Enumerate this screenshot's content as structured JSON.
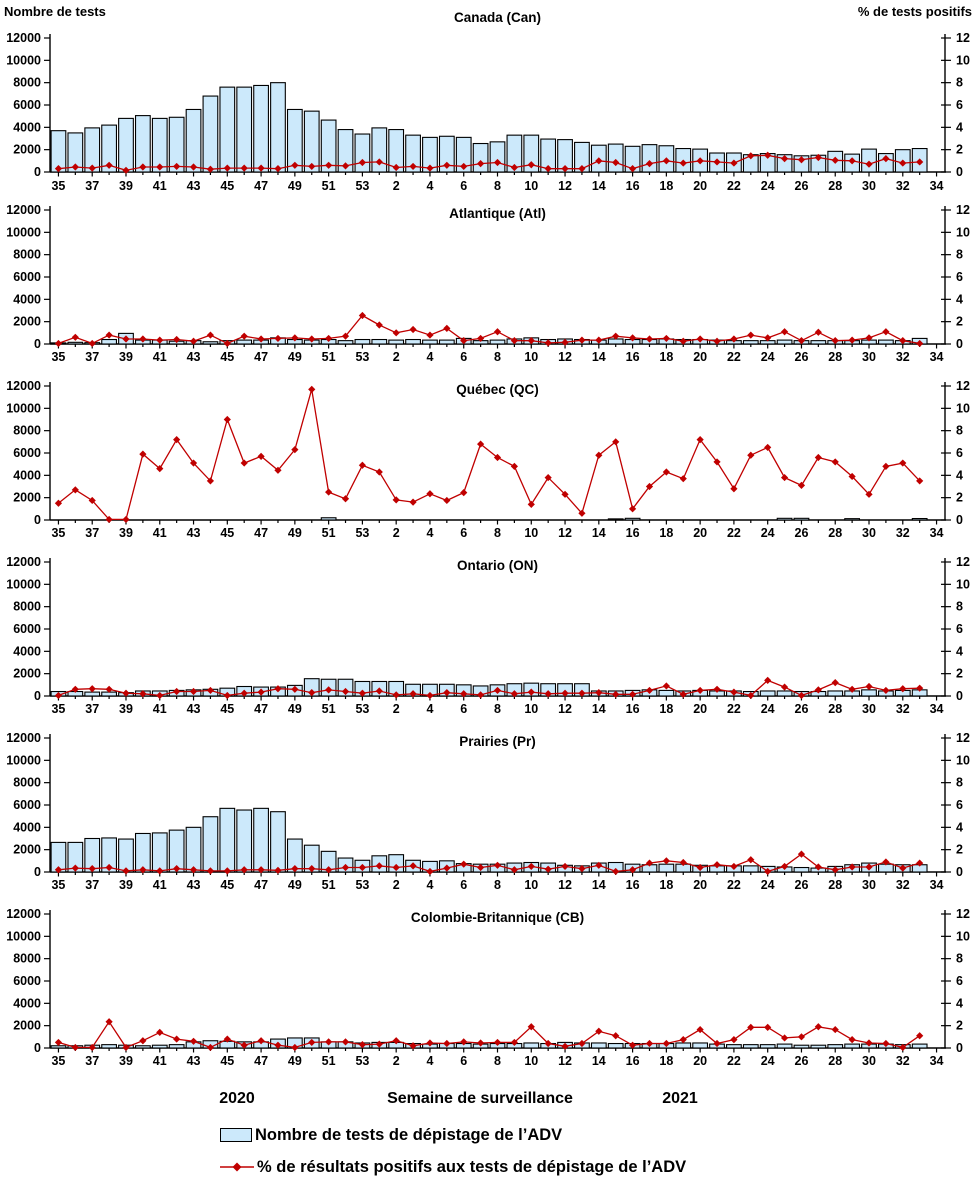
{
  "header": {
    "left_axis_title": "Nombre de tests",
    "right_axis_title": "% de tests positifs"
  },
  "footer": {
    "year_left": "2020",
    "xlabel": "Semaine de surveillance",
    "year_right": "2021"
  },
  "legend": {
    "items": [
      {
        "swatch": "bar",
        "label": "Nombre de tests de dépistage de l’ADV"
      },
      {
        "swatch": "line",
        "label": "% de résultats positifs aux tests de dépistage de l’ADV"
      }
    ]
  },
  "colors": {
    "bar_fill": "#CCE9FB",
    "bar_stroke": "#000000",
    "line": "#C00000",
    "axis": "#000000"
  },
  "chart_data": {
    "type": "bar+line multi-panel",
    "grid": false,
    "legend_position": "bottom",
    "categories": [
      "35",
      "36",
      "37",
      "38",
      "39",
      "40",
      "41",
      "42",
      "43",
      "44",
      "45",
      "46",
      "47",
      "48",
      "49",
      "50",
      "51",
      "52",
      "53",
      "1",
      "2",
      "3",
      "4",
      "5",
      "6",
      "7",
      "8",
      "9",
      "10",
      "11",
      "12",
      "13",
      "14",
      "15",
      "16",
      "17",
      "18",
      "19",
      "20",
      "21",
      "22",
      "23",
      "24",
      "25",
      "26",
      "27",
      "28",
      "29",
      "30",
      "31",
      "32",
      "33"
    ],
    "x_tick_labels": [
      "35",
      "37",
      "39",
      "41",
      "43",
      "45",
      "47",
      "49",
      "51",
      "53",
      "2",
      "4",
      "6",
      "8",
      "10",
      "12",
      "14",
      "16",
      "18",
      "20",
      "22",
      "24",
      "26",
      "28",
      "30",
      "32",
      "34"
    ],
    "left_axis": {
      "title": "Nombre de tests",
      "range": [
        0,
        12000
      ],
      "ticks": [
        0,
        2000,
        4000,
        6000,
        8000,
        10000,
        12000
      ]
    },
    "right_axis": {
      "title": "% de tests positifs",
      "range": [
        0,
        12
      ],
      "ticks": [
        0,
        2,
        4,
        6,
        8,
        10,
        12
      ]
    },
    "panels": [
      {
        "key": "can",
        "title": "Canada (Can)",
        "series": [
          {
            "name": "Nombre de tests de dépistage de l’ADV",
            "type": "bar",
            "axis": "left",
            "values": [
              3700,
              3500,
              3950,
              4200,
              4800,
              5050,
              4800,
              4900,
              5600,
              6800,
              7600,
              7600,
              7750,
              8000,
              5600,
              5450,
              4650,
              3800,
              3400,
              3950,
              3800,
              3300,
              3100,
              3200,
              3100,
              2550,
              2700,
              3300,
              3300,
              2950,
              2900,
              2650,
              2400,
              2500,
              2300,
              2450,
              2350,
              2100,
              2050,
              1700,
              1700,
              1550,
              1650,
              1550,
              1450,
              1500,
              1850,
              1600,
              2050,
              1650,
              2000,
              2100
            ]
          },
          {
            "name": "% de résultats positifs aux tests de dépistage de l’ADV",
            "type": "line",
            "axis": "right",
            "values": [
              0.3,
              0.45,
              0.35,
              0.6,
              0.15,
              0.45,
              0.45,
              0.5,
              0.45,
              0.25,
              0.35,
              0.35,
              0.35,
              0.3,
              0.6,
              0.5,
              0.6,
              0.55,
              0.85,
              0.9,
              0.4,
              0.5,
              0.35,
              0.6,
              0.5,
              0.75,
              0.85,
              0.4,
              0.65,
              0.3,
              0.3,
              0.3,
              1.0,
              0.85,
              0.3,
              0.75,
              1.0,
              0.8,
              1.0,
              0.9,
              0.8,
              1.45,
              1.5,
              1.2,
              1.1,
              1.3,
              1.05,
              1.0,
              0.7,
              1.2,
              0.8,
              0.9
            ]
          }
        ]
      },
      {
        "key": "atl",
        "title": "Atlantique (Atl)",
        "series": [
          {
            "name": "Nombre de tests de dépistage de l’ADV",
            "type": "bar",
            "axis": "left",
            "values": [
              100,
              150,
              120,
              400,
              950,
              350,
              350,
              250,
              300,
              200,
              300,
              350,
              350,
              550,
              400,
              350,
              400,
              300,
              400,
              400,
              350,
              400,
              350,
              350,
              500,
              300,
              350,
              450,
              550,
              400,
              450,
              400,
              350,
              450,
              400,
              400,
              450,
              400,
              400,
              350,
              300,
              300,
              300,
              350,
              300,
              300,
              300,
              300,
              350,
              350,
              300,
              500
            ]
          },
          {
            "name": "% de résultats positifs aux tests de dépistage de l’ADV",
            "type": "line",
            "axis": "right",
            "values": [
              0.05,
              0.6,
              0.05,
              0.8,
              0.45,
              0.45,
              0.35,
              0.4,
              0.25,
              0.8,
              0.05,
              0.7,
              0.45,
              0.5,
              0.55,
              0.45,
              0.5,
              0.7,
              2.55,
              1.7,
              1.0,
              1.3,
              0.8,
              1.4,
              0.3,
              0.5,
              1.1,
              0.3,
              0.3,
              0.1,
              0.15,
              0.35,
              0.35,
              0.7,
              0.55,
              0.45,
              0.5,
              0.25,
              0.45,
              0.25,
              0.45,
              0.8,
              0.55,
              1.1,
              0.3,
              1.05,
              0.3,
              0.35,
              0.55,
              1.1,
              0.3,
              0.05
            ]
          }
        ]
      },
      {
        "key": "qc",
        "title": "Québec (QC)",
        "series": [
          {
            "name": "Nombre de tests de dépistage de l’ADV",
            "type": "bar",
            "axis": "left",
            "values": [
              0,
              0,
              0,
              0,
              0,
              0,
              0,
              0,
              0,
              0,
              0,
              0,
              0,
              0,
              0,
              0,
              200,
              0,
              0,
              0,
              0,
              0,
              0,
              0,
              0,
              0,
              0,
              0,
              0,
              0,
              0,
              0,
              0,
              100,
              150,
              0,
              0,
              0,
              0,
              0,
              0,
              0,
              0,
              150,
              150,
              0,
              0,
              120,
              0,
              0,
              0,
              130
            ]
          },
          {
            "name": "% de résultats positifs aux tests de dépistage de l’ADV",
            "type": "line",
            "axis": "right",
            "values": [
              1.5,
              2.7,
              1.75,
              0.05,
              0.05,
              5.9,
              4.6,
              7.2,
              5.1,
              3.5,
              9.0,
              5.1,
              5.7,
              4.45,
              6.3,
              11.7,
              2.5,
              1.9,
              4.9,
              4.3,
              1.8,
              1.6,
              2.35,
              1.75,
              2.45,
              6.8,
              5.6,
              4.8,
              1.4,
              3.8,
              2.3,
              0.6,
              5.8,
              7.0,
              1.0,
              3.0,
              4.3,
              3.7,
              7.2,
              5.2,
              2.8,
              5.8,
              6.5,
              3.8,
              3.1,
              5.6,
              5.2,
              3.9,
              2.3,
              4.8,
              5.1,
              3.5
            ]
          }
        ]
      },
      {
        "key": "on",
        "title": "Ontario (ON)",
        "series": [
          {
            "name": "Nombre de tests de dépistage de l’ADV",
            "type": "bar",
            "axis": "left",
            "values": [
              400,
              400,
              350,
              350,
              300,
              450,
              450,
              500,
              550,
              600,
              700,
              850,
              800,
              800,
              950,
              1550,
              1500,
              1500,
              1300,
              1300,
              1300,
              1050,
              1050,
              1050,
              1000,
              900,
              1000,
              1100,
              1150,
              1100,
              1100,
              1100,
              450,
              450,
              500,
              550,
              500,
              450,
              500,
              450,
              450,
              400,
              450,
              450,
              400,
              400,
              450,
              450,
              550,
              450,
              500,
              550
            ]
          },
          {
            "name": "% de résultats positifs aux tests de dépistage de l’ADV",
            "type": "line",
            "axis": "right",
            "values": [
              0.05,
              0.6,
              0.65,
              0.6,
              0.25,
              0.2,
              0.05,
              0.4,
              0.4,
              0.5,
              0.05,
              0.25,
              0.35,
              0.65,
              0.6,
              0.3,
              0.55,
              0.4,
              0.25,
              0.45,
              0.1,
              0.2,
              0.05,
              0.3,
              0.2,
              0.1,
              0.5,
              0.2,
              0.35,
              0.2,
              0.25,
              0.25,
              0.3,
              0.15,
              0.15,
              0.5,
              0.9,
              0.15,
              0.5,
              0.6,
              0.35,
              0.05,
              1.4,
              0.8,
              0.05,
              0.55,
              1.2,
              0.6,
              0.85,
              0.5,
              0.65,
              0.7
            ]
          }
        ]
      },
      {
        "key": "pr",
        "title": "Prairies (Pr)",
        "series": [
          {
            "name": "Nombre de tests de dépistage de l’ADV",
            "type": "bar",
            "axis": "left",
            "values": [
              2650,
              2650,
              3000,
              3050,
              2950,
              3450,
              3500,
              3750,
              4000,
              4950,
              5700,
              5550,
              5700,
              5400,
              2950,
              2400,
              1850,
              1250,
              1050,
              1450,
              1550,
              1050,
              950,
              1000,
              750,
              700,
              700,
              800,
              850,
              800,
              600,
              550,
              800,
              850,
              700,
              650,
              700,
              700,
              600,
              550,
              550,
              550,
              500,
              450,
              400,
              350,
              500,
              650,
              800,
              700,
              650,
              650
            ]
          },
          {
            "name": "% de résultats positifs aux tests de dépistage de l’ADV",
            "type": "line",
            "axis": "right",
            "values": [
              0.2,
              0.35,
              0.3,
              0.4,
              0.1,
              0.2,
              0.1,
              0.3,
              0.2,
              0.1,
              0.1,
              0.2,
              0.2,
              0.15,
              0.3,
              0.3,
              0.2,
              0.4,
              0.4,
              0.55,
              0.4,
              0.55,
              0.05,
              0.35,
              0.7,
              0.4,
              0.6,
              0.2,
              0.5,
              0.25,
              0.5,
              0.3,
              0.6,
              0.05,
              0.2,
              0.8,
              1.0,
              0.85,
              0.4,
              0.65,
              0.5,
              1.1,
              0.05,
              0.5,
              1.6,
              0.45,
              0.2,
              0.45,
              0.45,
              0.9,
              0.35,
              0.8
            ]
          }
        ]
      },
      {
        "key": "cb",
        "title": "Colombie-Britannique (CB)",
        "series": [
          {
            "name": "Nombre de tests de dépistage de l’ADV",
            "type": "bar",
            "axis": "left",
            "values": [
              200,
              200,
              250,
              300,
              250,
              200,
              250,
              300,
              550,
              650,
              600,
              550,
              550,
              800,
              900,
              900,
              550,
              550,
              450,
              500,
              500,
              400,
              350,
              400,
              400,
              350,
              400,
              400,
              450,
              400,
              500,
              450,
              450,
              400,
              400,
              400,
              400,
              450,
              450,
              350,
              300,
              300,
              300,
              350,
              250,
              250,
              300,
              350,
              350,
              350,
              300,
              350
            ]
          },
          {
            "name": "% de résultats positifs aux tests de dépistage de l’ADV",
            "type": "line",
            "axis": "right",
            "values": [
              0.5,
              0.05,
              0.05,
              2.35,
              0.05,
              0.65,
              1.4,
              0.8,
              0.6,
              0.05,
              0.8,
              0.25,
              0.65,
              0.25,
              0.05,
              0.5,
              0.55,
              0.55,
              0.3,
              0.35,
              0.65,
              0.2,
              0.45,
              0.4,
              0.55,
              0.45,
              0.5,
              0.5,
              1.9,
              0.4,
              0.15,
              0.4,
              1.5,
              1.1,
              0.25,
              0.4,
              0.4,
              0.75,
              1.65,
              0.4,
              0.75,
              1.85,
              1.85,
              0.9,
              1.0,
              1.9,
              1.65,
              0.75,
              0.45,
              0.4,
              0.05,
              1.1
            ]
          }
        ]
      }
    ]
  }
}
